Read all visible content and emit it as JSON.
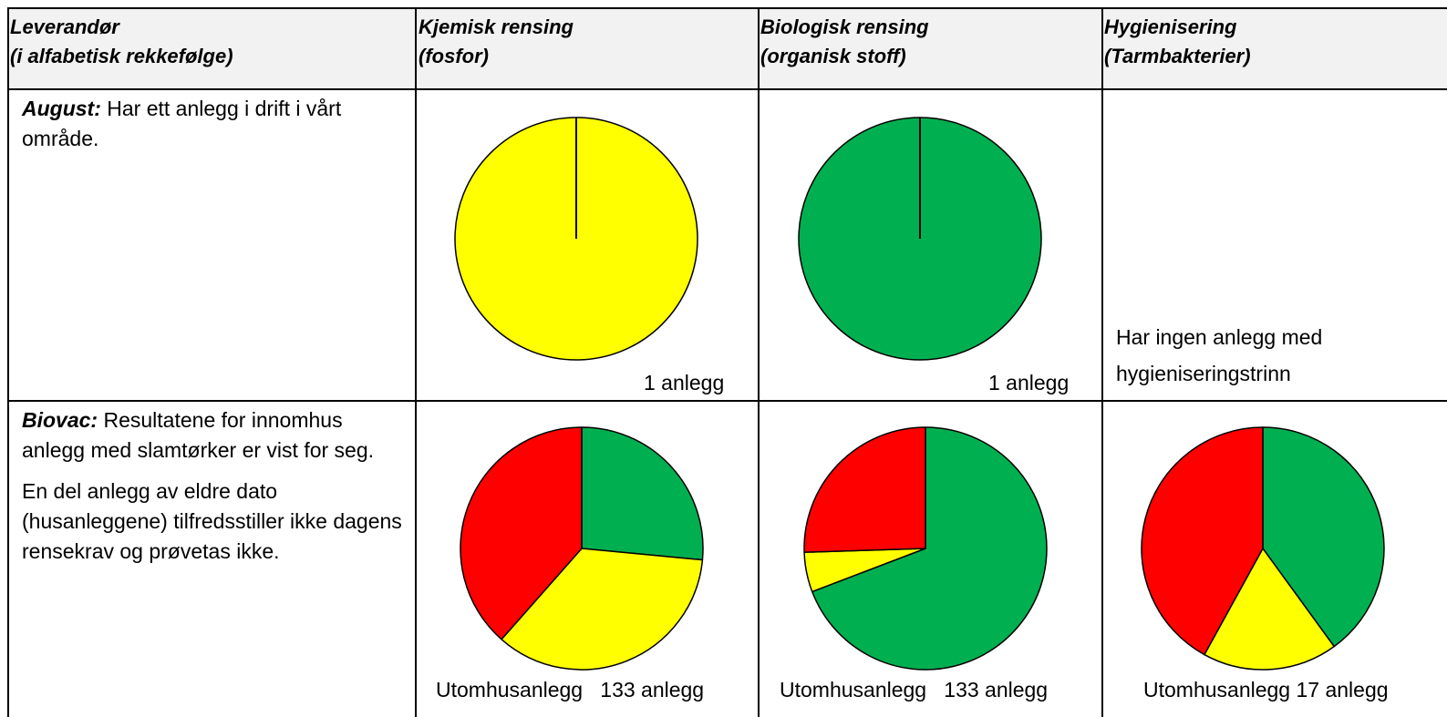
{
  "headers": [
    {
      "line1": "Leverandør",
      "line2": "(i alfabetisk rekkefølge)"
    },
    {
      "line1": "Kjemisk rensing",
      "line2": "(fosfor)"
    },
    {
      "line1": "Biologisk rensing",
      "line2": "(organisk stoff)"
    },
    {
      "line1": "Hygienisering",
      "line2": "(Tarmbakterier)"
    }
  ],
  "rows": [
    {
      "supplier": "August:",
      "description": " Har ett anlegg i drift i vårt område.",
      "kjemisk_caption": "1 anlegg",
      "biologisk_caption": "1 anlegg",
      "hygienisering_note": "Har ingen anlegg med hygieniseringstrinn"
    },
    {
      "supplier": "Biovac:",
      "description": " Resultatene for innomhus anlegg med slamtørker er vist for seg.",
      "description2": "En del anlegg av eldre dato (husanleggene) tilfredsstiller ikke dagens rensekrav og prøvetas ikke.",
      "kjemisk_caption": "Utomhusanlegg   133 anlegg",
      "biologisk_caption": "Utomhusanlegg   133 anlegg",
      "hygienisering_caption": "Utomhusanlegg 17 anlegg"
    }
  ],
  "colors": {
    "green": "#00b050",
    "yellow": "#ffff00",
    "red": "#ff0000",
    "header_bg": "#f2f2f2"
  },
  "chart_data": [
    {
      "type": "pie",
      "supplier": "August",
      "column": "Kjemisk rensing (fosfor)",
      "slices": [
        {
          "color": "yellow",
          "value": 1.0
        }
      ]
    },
    {
      "type": "pie",
      "supplier": "August",
      "column": "Biologisk rensing (organisk stoff)",
      "slices": [
        {
          "color": "green",
          "value": 1.0
        }
      ]
    },
    {
      "type": "pie",
      "supplier": "Biovac",
      "column": "Kjemisk rensing (fosfor)",
      "slices": [
        {
          "color": "green",
          "value": 0.265
        },
        {
          "color": "yellow",
          "value": 0.35
        },
        {
          "color": "red",
          "value": 0.385
        }
      ]
    },
    {
      "type": "pie",
      "supplier": "Biovac",
      "column": "Biologisk rensing (organisk stoff)",
      "slices": [
        {
          "color": "green",
          "value": 0.692
        },
        {
          "color": "yellow",
          "value": 0.053
        },
        {
          "color": "red",
          "value": 0.255
        }
      ]
    },
    {
      "type": "pie",
      "supplier": "Biovac",
      "column": "Hygienisering (Tarmbakterier)",
      "slices": [
        {
          "color": "green",
          "value": 0.4
        },
        {
          "color": "yellow",
          "value": 0.18
        },
        {
          "color": "red",
          "value": 0.42
        }
      ]
    }
  ]
}
